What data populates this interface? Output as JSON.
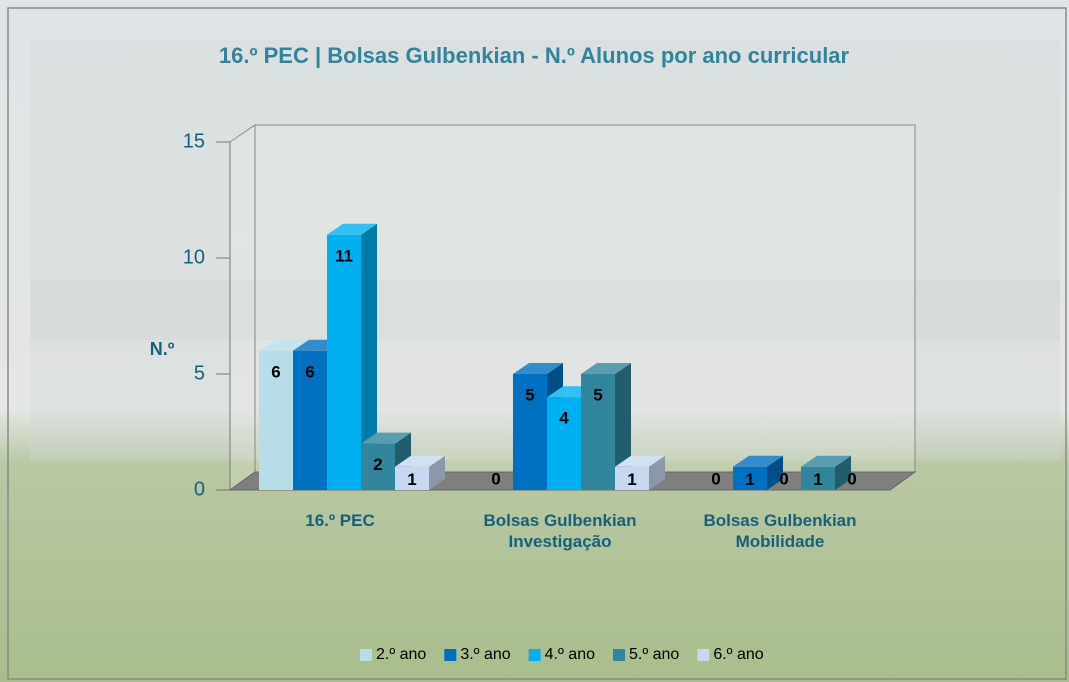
{
  "chart_data": {
    "type": "bar3d",
    "title": "16.º PEC | Bolsas Gulbenkian - N.º Alunos por ano curricular",
    "ylabel": "N.º",
    "categories": [
      "16.º PEC",
      "Bolsas Gulbenkian Investigação",
      "Bolsas Gulbenkian Mobilidade"
    ],
    "series": [
      {
        "name": "2.º ano",
        "color": "#b7dde8",
        "values": [
          6,
          0,
          0
        ]
      },
      {
        "name": "3.º ano",
        "color": "#0070c0",
        "values": [
          6,
          5,
          1
        ]
      },
      {
        "name": "4.º ano",
        "color": "#00b0f0",
        "values": [
          11,
          4,
          0
        ]
      },
      {
        "name": "5.º ano",
        "color": "#31859c",
        "values": [
          2,
          5,
          1
        ]
      },
      {
        "name": "6.º ano",
        "color": "#c6d9f1",
        "values": [
          1,
          1,
          0
        ]
      }
    ],
    "ylim": [
      0,
      15
    ],
    "yticks": [
      0,
      5,
      10,
      15
    ]
  }
}
